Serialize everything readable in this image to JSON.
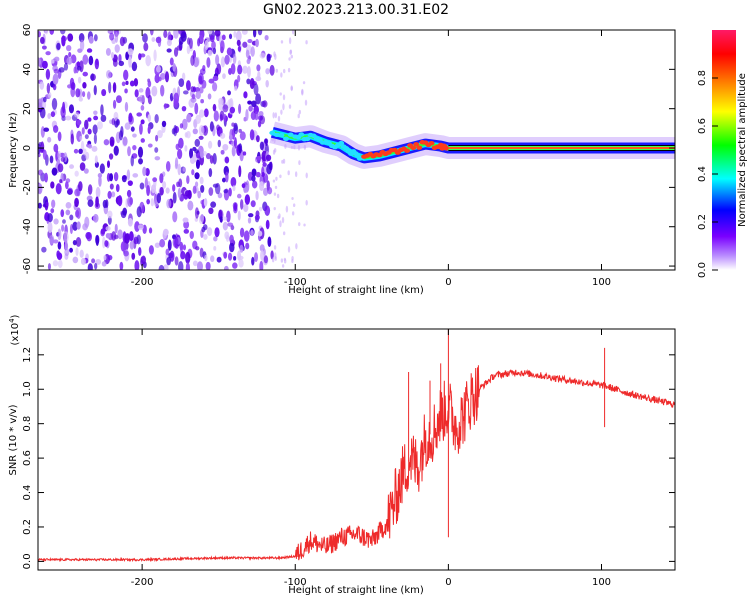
{
  "title": "GN02.2023.213.00.31.E02",
  "colors": {
    "speckle": "#6a0ff0",
    "snr_line": "#ee2a2a",
    "axis": "#000000"
  },
  "chart_data": [
    {
      "type": "heatmap",
      "xlabel": "Height of straight line (km)",
      "ylabel": "Frequency (Hz)",
      "xlim": [
        -268,
        148
      ],
      "ylim": [
        -62,
        60
      ],
      "xticks": [
        -200,
        -100,
        0,
        100
      ],
      "yticks": [
        60,
        40,
        20,
        0,
        -20,
        -40,
        -60
      ],
      "colorbar": {
        "label": "Normalized spectral amplitude",
        "range": [
          0,
          1
        ],
        "ticks": [
          "0.0",
          "0.2",
          "0.4",
          "0.6",
          "0.8"
        ],
        "colors": [
          "#ffffff",
          "#7a00ff",
          "#0000ff",
          "#00ffff",
          "#00ff00",
          "#ffff00",
          "#ff7f00",
          "#ff0000",
          "#ff0066"
        ]
      },
      "regions": [
        {
          "name": "noise",
          "x_range": [
            -268,
            -115
          ],
          "freq_range": [
            -62,
            60
          ]
        },
        {
          "name": "signal_track",
          "points": [
            [
              -115,
              8
            ],
            [
              -100,
              5
            ],
            [
              -90,
              6
            ],
            [
              -80,
              3
            ],
            [
              -70,
              1
            ],
            [
              -62,
              -3
            ],
            [
              -55,
              -5
            ],
            [
              -45,
              -4
            ],
            [
              -35,
              -2
            ],
            [
              -25,
              0
            ],
            [
              -15,
              2
            ],
            [
              -5,
              1
            ],
            [
              0,
              0
            ],
            [
              148,
              0
            ]
          ]
        }
      ]
    },
    {
      "type": "line",
      "xlabel": "Height of straight line (km)",
      "ylabel": "SNR (10 * v/v)",
      "y_multiplier": "(x10",
      "y_multiplier_exp": "4",
      "y_multiplier_close": ")",
      "xlim": [
        -268,
        148
      ],
      "ylim": [
        -0.05,
        1.35
      ],
      "xticks": [
        -200,
        -100,
        0,
        100
      ],
      "yticks": [
        "0.0",
        "0.2",
        "0.4",
        "0.6",
        "0.8",
        "1.0",
        "1.2"
      ],
      "series": [
        {
          "points": [
            [
              -268,
              0.01
            ],
            [
              -200,
              0.01
            ],
            [
              -150,
              0.02
            ],
            [
              -110,
              0.02
            ],
            [
              -100,
              0.03
            ],
            [
              -90,
              0.12
            ],
            [
              -80,
              0.08
            ],
            [
              -70,
              0.14
            ],
            [
              -60,
              0.16
            ],
            [
              -50,
              0.12
            ],
            [
              -40,
              0.22
            ],
            [
              -35,
              0.35
            ],
            [
              -30,
              0.5
            ],
            [
              -25,
              0.6
            ],
            [
              -20,
              0.55
            ],
            [
              -15,
              0.72
            ],
            [
              -10,
              0.75
            ],
            [
              -5,
              0.85
            ],
            [
              0,
              0.9
            ],
            [
              5,
              0.78
            ],
            [
              10,
              0.85
            ],
            [
              15,
              0.95
            ],
            [
              20,
              1.0
            ],
            [
              30,
              1.08
            ],
            [
              45,
              1.1
            ],
            [
              60,
              1.08
            ],
            [
              80,
              1.05
            ],
            [
              95,
              1.03
            ],
            [
              102,
              1.02
            ],
            [
              120,
              0.97
            ],
            [
              148,
              0.91
            ]
          ],
          "spikes": [
            [
              -26,
              1.1
            ],
            [
              -12,
              1.05
            ],
            [
              -5,
              1.15
            ],
            [
              0,
              1.35
            ],
            [
              0,
              0.14
            ],
            [
              102,
              1.24
            ],
            [
              102,
              0.78
            ]
          ]
        }
      ]
    }
  ]
}
